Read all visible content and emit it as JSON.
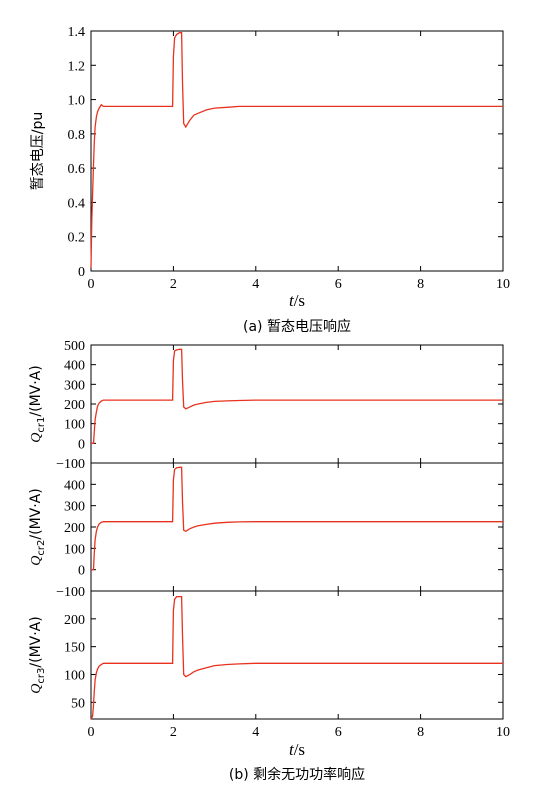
{
  "colors": {
    "series": "#e8321e",
    "axis": "#000000"
  },
  "chart_data": [
    {
      "type": "line",
      "id": "voltage",
      "ylabel": "暂态电压/pu",
      "xlabel_var": "t",
      "xlabel_unit": "/s",
      "caption": "(a) 暂态电压响应",
      "xlim": [
        0,
        10
      ],
      "ylim": [
        0,
        1.4
      ],
      "xticks": [
        "0",
        "2",
        "4",
        "6",
        "8",
        "10"
      ],
      "yticks": [
        "0",
        "0.2",
        "0.4",
        "0.6",
        "0.8",
        "1.0",
        "1.2",
        "1.4"
      ],
      "series": [
        {
          "x": [
            0,
            0.02,
            0.04,
            0.06,
            0.08,
            0.1,
            0.13,
            0.16,
            0.2,
            0.25,
            0.3,
            0.4,
            0.6,
            1.0,
            1.5,
            1.98,
            2.0,
            2.03,
            2.08,
            2.15,
            2.2,
            2.22,
            2.25,
            2.3,
            2.4,
            2.5,
            2.6,
            2.8,
            3.0,
            3.3,
            3.6,
            4.0,
            6.0,
            8.0,
            10.0
          ],
          "y": [
            0.02,
            0.3,
            0.45,
            0.62,
            0.75,
            0.84,
            0.9,
            0.93,
            0.95,
            0.97,
            0.96,
            0.96,
            0.96,
            0.96,
            0.96,
            0.96,
            1.25,
            1.36,
            1.38,
            1.39,
            1.39,
            1.1,
            0.86,
            0.84,
            0.88,
            0.91,
            0.92,
            0.94,
            0.95,
            0.955,
            0.96,
            0.96,
            0.96,
            0.96,
            0.96
          ]
        }
      ]
    },
    {
      "type": "line",
      "id": "qcr1",
      "ylabel_main": "Q",
      "ylabel_sub": "cr1",
      "ylabel_unit": "/(MV·A)",
      "xlim": [
        0,
        10
      ],
      "ylim": [
        -100,
        500
      ],
      "yticks": [
        "−100",
        "0",
        "100",
        "200",
        "300",
        "400",
        "500"
      ],
      "series": [
        {
          "x": [
            0,
            0.06,
            0.08,
            0.1,
            0.13,
            0.16,
            0.2,
            0.25,
            0.3,
            0.4,
            0.6,
            1.0,
            1.5,
            1.98,
            2.0,
            2.03,
            2.08,
            2.15,
            2.2,
            2.22,
            2.25,
            2.3,
            2.4,
            2.5,
            2.6,
            2.8,
            3.0,
            3.3,
            3.6,
            4.0,
            6.0,
            8.0,
            10.0
          ],
          "y": [
            0,
            0,
            60,
            120,
            160,
            190,
            205,
            215,
            220,
            220,
            220,
            220,
            220,
            220,
            420,
            470,
            475,
            478,
            478,
            320,
            185,
            175,
            185,
            195,
            200,
            208,
            213,
            216,
            218,
            220,
            220,
            220,
            220
          ]
        }
      ]
    },
    {
      "type": "line",
      "id": "qcr2",
      "ylabel_main": "Q",
      "ylabel_sub": "cr2",
      "ylabel_unit": "/(MV·A)",
      "xlim": [
        0,
        10
      ],
      "ylim": [
        -100,
        500
      ],
      "yticks": [
        "−100",
        "0",
        "100",
        "200",
        "300",
        "400"
      ],
      "series": [
        {
          "x": [
            0,
            0.06,
            0.08,
            0.1,
            0.13,
            0.16,
            0.2,
            0.25,
            0.3,
            0.4,
            0.6,
            1.0,
            1.5,
            1.98,
            2.0,
            2.03,
            2.08,
            2.15,
            2.2,
            2.22,
            2.25,
            2.3,
            2.4,
            2.5,
            2.6,
            2.8,
            3.0,
            3.3,
            3.6,
            4.0,
            6.0,
            8.0,
            10.0
          ],
          "y": [
            0,
            0,
            80,
            140,
            180,
            200,
            215,
            222,
            225,
            225,
            225,
            225,
            225,
            225,
            420,
            470,
            478,
            480,
            480,
            320,
            185,
            180,
            192,
            200,
            206,
            212,
            218,
            222,
            224,
            225,
            225,
            225,
            225
          ]
        }
      ]
    },
    {
      "type": "line",
      "id": "qcr3",
      "ylabel_main": "Q",
      "ylabel_sub": "cr3",
      "ylabel_unit": "/(MV·A)",
      "xlabel_var": "t",
      "xlabel_unit": "/s",
      "caption": "(b) 剩余无功功率响应",
      "xlim": [
        0,
        10
      ],
      "ylim": [
        20,
        250
      ],
      "xticks": [
        "0",
        "2",
        "4",
        "6",
        "8",
        "10"
      ],
      "yticks": [
        "50",
        "100",
        "150",
        "200"
      ],
      "series": [
        {
          "x": [
            0,
            0.04,
            0.06,
            0.08,
            0.1,
            0.13,
            0.16,
            0.2,
            0.25,
            0.3,
            0.4,
            0.6,
            1.0,
            1.5,
            1.98,
            2.0,
            2.03,
            2.08,
            2.15,
            2.2,
            2.22,
            2.25,
            2.3,
            2.4,
            2.5,
            2.6,
            2.8,
            3.0,
            3.3,
            3.6,
            4.0,
            6.0,
            8.0,
            10.0
          ],
          "y": [
            20,
            25,
            45,
            70,
            90,
            103,
            110,
            115,
            118,
            120,
            120,
            120,
            120,
            120,
            120,
            215,
            235,
            240,
            240,
            240,
            170,
            100,
            96,
            100,
            105,
            108,
            112,
            116,
            118,
            119,
            120,
            120,
            120,
            120
          ]
        }
      ]
    }
  ]
}
